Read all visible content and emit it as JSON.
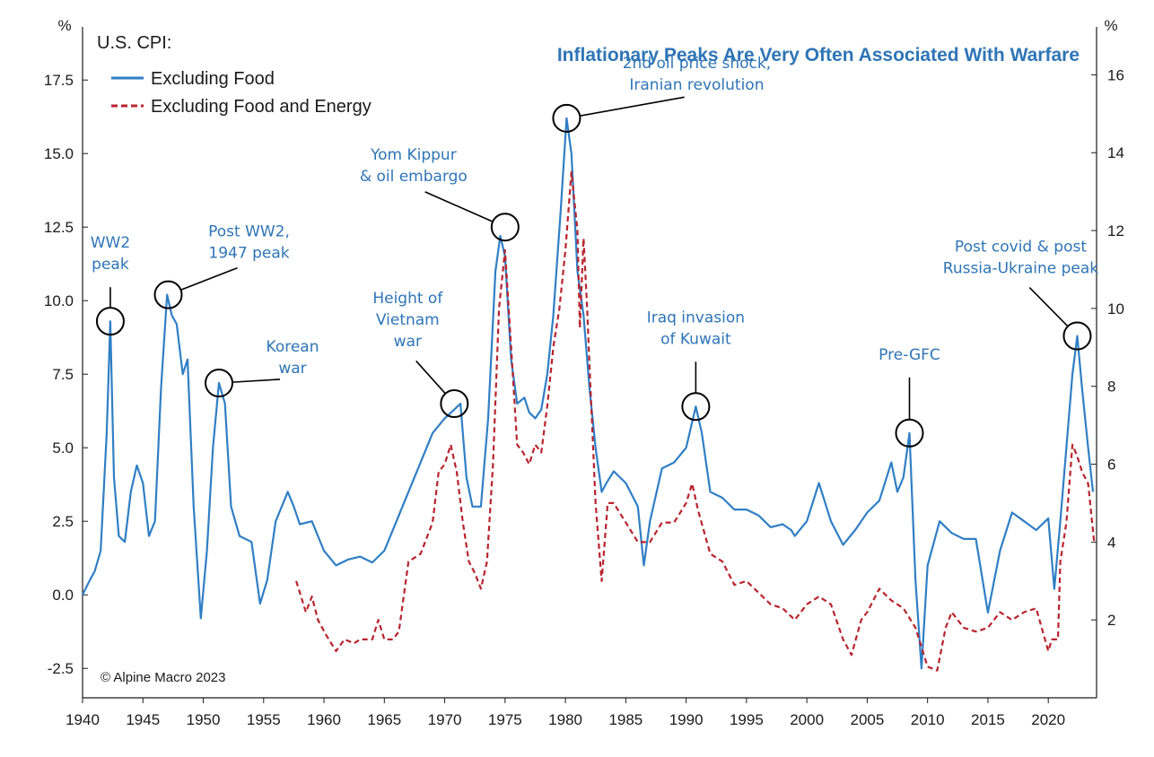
{
  "colors": {
    "excl_food": "#2f7fc5",
    "excl_food_energy": "#b8232e",
    "title": "#2e75b6",
    "annotation": "#2e75b6",
    "axis": "#1a1a1a"
  },
  "chart_data": {
    "type": "line",
    "title": "Inflationary Peaks Are Very Often Associated With Warfare",
    "legend_title": "U.S. CPI:",
    "legend_position": "top-left",
    "left_axis_unit": "%",
    "right_axis_unit": "%",
    "credit": "© Alpine Macro 2023",
    "grid": false,
    "xlim": [
      1940,
      2024
    ],
    "ylim_left": [
      -3.5,
      19.0
    ],
    "ylim_right": [
      0,
      17.0
    ],
    "x_ticks": [
      "1940",
      "1945",
      "1950",
      "1955",
      "1960",
      "1965",
      "1970",
      "1975",
      "1980",
      "1985",
      "1990",
      "1995",
      "2000",
      "2005",
      "2010",
      "2015",
      "2020"
    ],
    "y_ticks_left": [
      "-2.5",
      "0.0",
      "2.5",
      "5.0",
      "7.5",
      "10.0",
      "12.5",
      "15.0",
      "17.5"
    ],
    "y_ticks_right": [
      "2",
      "4",
      "6",
      "8",
      "10",
      "12",
      "14",
      "16"
    ],
    "series": [
      {
        "name": "Excluding Food",
        "axis": "left",
        "style": "solid",
        "x": [
          1940,
          1940.6,
          1941,
          1941.5,
          1942,
          1942.3,
          1942.6,
          1943,
          1943.5,
          1944,
          1944.5,
          1945,
          1945.5,
          1946,
          1946.5,
          1947,
          1947.4,
          1947.8,
          1948.3,
          1948.7,
          1949.2,
          1949.8,
          1950.3,
          1950.8,
          1951.3,
          1951.8,
          1952.3,
          1953,
          1954,
          1954.7,
          1955.3,
          1956,
          1957,
          1957.5,
          1958,
          1959,
          1960,
          1961,
          1962,
          1963,
          1964,
          1965,
          1966,
          1967,
          1968,
          1969,
          1970,
          1970.8,
          1971.3,
          1971.8,
          1972.3,
          1973,
          1973.6,
          1974.2,
          1974.6,
          1975,
          1975.5,
          1976,
          1976.6,
          1977,
          1977.5,
          1978,
          1978.5,
          1979,
          1979.6,
          1980.1,
          1980.5,
          1981,
          1981.5,
          1982,
          1982.5,
          1983,
          1983.4,
          1984,
          1985,
          1986,
          1986.5,
          1987,
          1988,
          1989,
          1990,
          1990.8,
          1991.3,
          1992,
          1993,
          1994,
          1995,
          1996,
          1997,
          1998,
          1998.7,
          1999,
          2000,
          2001,
          2002,
          2003,
          2004,
          2005,
          2006,
          2007,
          2007.5,
          2008,
          2008.5,
          2009,
          2009.5,
          2010,
          2011,
          2012,
          2013,
          2014,
          2015,
          2016,
          2017,
          2018,
          2019,
          2020,
          2020.5,
          2021,
          2021.6,
          2022,
          2022.4,
          2022.8,
          2023.3,
          2023.7
        ],
        "y": [
          0.0,
          0.5,
          0.8,
          1.5,
          5.5,
          9.3,
          4.0,
          2.0,
          1.8,
          3.5,
          4.4,
          3.8,
          2.0,
          2.5,
          7.0,
          10.2,
          9.5,
          9.2,
          7.5,
          8.0,
          3.0,
          -0.8,
          1.5,
          5.0,
          7.2,
          6.5,
          3.0,
          2.0,
          1.8,
          -0.3,
          0.5,
          2.5,
          3.5,
          3.0,
          2.4,
          2.5,
          1.5,
          1.0,
          1.2,
          1.3,
          1.1,
          1.5,
          2.5,
          3.5,
          4.5,
          5.5,
          6.0,
          6.3,
          6.5,
          4.0,
          3.0,
          3.0,
          6.0,
          11.0,
          12.2,
          11.5,
          8.0,
          6.5,
          6.7,
          6.2,
          6.0,
          6.3,
          7.5,
          9.5,
          13.0,
          16.2,
          15.0,
          11.0,
          9.5,
          7.0,
          5.0,
          3.5,
          3.8,
          4.2,
          3.8,
          3.0,
          1.0,
          2.5,
          4.3,
          4.5,
          5.0,
          6.4,
          5.5,
          3.5,
          3.3,
          2.9,
          2.9,
          2.7,
          2.3,
          2.4,
          2.2,
          2.0,
          2.5,
          3.8,
          2.5,
          1.7,
          2.2,
          2.8,
          3.2,
          4.5,
          3.5,
          4.0,
          5.5,
          0.5,
          -2.5,
          1.0,
          2.5,
          2.1,
          1.9,
          1.9,
          -0.6,
          1.5,
          2.8,
          2.5,
          2.2,
          2.6,
          0.2,
          2.5,
          5.5,
          7.5,
          8.8,
          7.0,
          5.0,
          3.5
        ]
      },
      {
        "name": "Excluding Food and Energy",
        "axis": "right",
        "style": "dashed",
        "x": [
          1957.7,
          1958.5,
          1959,
          1959.5,
          1960.2,
          1961,
          1961.7,
          1962.5,
          1963,
          1964,
          1964.5,
          1965,
          1965.7,
          1966.2,
          1967,
          1968,
          1969,
          1969.5,
          1970,
          1970.5,
          1971,
          1971.5,
          1972,
          1972.5,
          1973,
          1973.5,
          1974,
          1974.5,
          1975,
          1975.5,
          1976,
          1976.5,
          1977,
          1977.5,
          1978,
          1978.5,
          1979,
          1979.5,
          1980,
          1980.5,
          1981,
          1981.2,
          1981.5,
          1981.8,
          1982,
          1982.5,
          1983,
          1983.5,
          1984,
          1985,
          1986,
          1987,
          1988,
          1989,
          1990,
          1990.5,
          1991,
          1992,
          1993,
          1994,
          1995,
          1996,
          1997,
          1998,
          1999,
          2000,
          2001,
          2002,
          2003,
          2003.7,
          2004.5,
          2005,
          2006,
          2007,
          2008,
          2009,
          2010,
          2010.8,
          2011.5,
          2012,
          2013,
          2014,
          2015,
          2016,
          2017,
          2018,
          2019,
          2020,
          2020.3,
          2020.8,
          2021,
          2021.5,
          2022,
          2022.4,
          2022.8,
          2023.3,
          2023.8
        ],
        "y": [
          3.0,
          2.2,
          2.6,
          2.0,
          1.6,
          1.2,
          1.5,
          1.4,
          1.5,
          1.5,
          2.0,
          1.5,
          1.5,
          1.7,
          3.5,
          3.7,
          4.5,
          5.8,
          6.0,
          6.5,
          5.8,
          4.5,
          3.5,
          3.2,
          2.8,
          3.5,
          6.0,
          10.0,
          11.5,
          9.0,
          6.5,
          6.3,
          6.0,
          6.5,
          6.3,
          7.5,
          9.0,
          10.0,
          11.5,
          13.5,
          12.0,
          9.5,
          11.8,
          10.0,
          8.5,
          5.0,
          3.0,
          5.0,
          5.0,
          4.5,
          4.0,
          4.0,
          4.5,
          4.5,
          5.0,
          5.5,
          4.8,
          3.7,
          3.5,
          2.9,
          3.0,
          2.7,
          2.4,
          2.3,
          2.0,
          2.4,
          2.6,
          2.4,
          1.5,
          1.1,
          2.0,
          2.2,
          2.8,
          2.5,
          2.3,
          1.8,
          0.8,
          0.7,
          1.8,
          2.2,
          1.8,
          1.7,
          1.8,
          2.2,
          2.0,
          2.2,
          2.3,
          1.2,
          1.5,
          1.5,
          3.5,
          4.5,
          6.5,
          6.2,
          5.8,
          5.5,
          4.0
        ]
      }
    ],
    "annotations": [
      {
        "text": [
          "WW2",
          "peak"
        ],
        "x": 1942.3,
        "y": 9.3,
        "axis": "left"
      },
      {
        "text": [
          "Post WW2,",
          "1947 peak"
        ],
        "x": 1947.1,
        "y": 10.2,
        "axis": "left"
      },
      {
        "text": [
          "Korean",
          "war"
        ],
        "x": 1951.3,
        "y": 7.2,
        "axis": "left"
      },
      {
        "text": [
          "Height of",
          "Vietnam",
          "war"
        ],
        "x": 1970.8,
        "y": 6.5,
        "axis": "left"
      },
      {
        "text": [
          "Yom Kippur",
          "& oil embargo"
        ],
        "x": 1975.0,
        "y": 12.5,
        "axis": "left"
      },
      {
        "text": [
          "2nd oil price shock,",
          "Iranian revolution"
        ],
        "x": 1980.1,
        "y": 16.2,
        "axis": "left"
      },
      {
        "text": [
          "Iraq invasion",
          "of Kuwait"
        ],
        "x": 1990.8,
        "y": 6.4,
        "axis": "left"
      },
      {
        "text": [
          "Pre-GFC"
        ],
        "x": 2008.5,
        "y": 5.5,
        "axis": "left"
      },
      {
        "text": [
          "Post covid & post",
          "Russia-Ukraine peak"
        ],
        "x": 2022.4,
        "y": 8.8,
        "axis": "left"
      }
    ]
  }
}
